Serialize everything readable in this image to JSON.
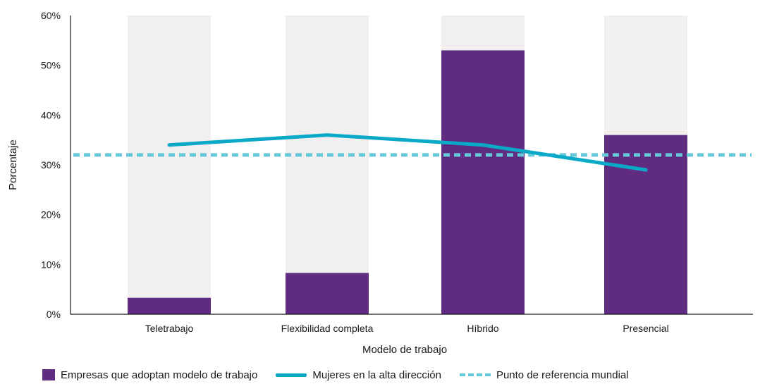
{
  "chart_data": {
    "type": "bar",
    "categories": [
      "Teletrabajo",
      "Flexibilidad completa",
      "Híbrido",
      "Presencial"
    ],
    "series": [
      {
        "name": "Empresas que adoptan modelo de trabajo",
        "type": "bar",
        "values": [
          3.3,
          8.3,
          53.0,
          36.0
        ]
      },
      {
        "name": "Mujeres en la alta dirección",
        "type": "line",
        "values": [
          34.0,
          36.0,
          34.0,
          29.0
        ]
      },
      {
        "name": "Punto de referencia mundial",
        "type": "reference-line",
        "value": 32.0
      }
    ],
    "xlabel": "Modelo de trabajo",
    "ylabel": "Porcentaje",
    "ylim": [
      0,
      60
    ],
    "yticks": [
      0,
      10,
      20,
      30,
      40,
      50,
      60
    ],
    "ytick_labels": [
      "0%",
      "10%",
      "20%",
      "30%",
      "40%",
      "50%",
      "60%"
    ],
    "legend_position": "bottom",
    "grid": false,
    "colors": {
      "bar": "#5f2c82",
      "bar_background": "#f1f0ef",
      "line": "#0aa9c8",
      "reference": "#67c8d9",
      "axis": "#1a1a1a"
    }
  }
}
